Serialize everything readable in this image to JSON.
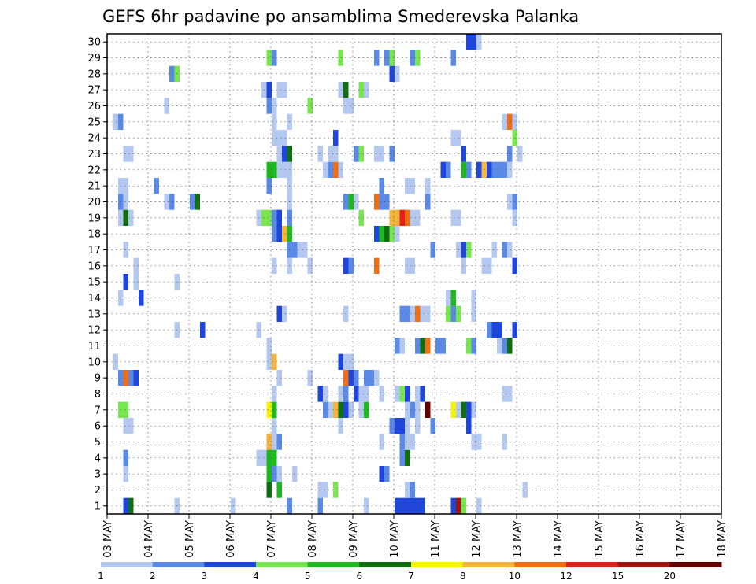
{
  "chart_data": {
    "type": "heatmap",
    "title": "GEFS 6hr padavine po ansamblima Smederevska Palanka",
    "xlabel": "",
    "ylabel": "",
    "x_tick_labels": [
      "03 MAY",
      "04 MAY",
      "05 MAY",
      "06 MAY",
      "07 MAY",
      "08 MAY",
      "09 MAY",
      "10 MAY",
      "11 MAY",
      "12 MAY",
      "13 MAY",
      "14 MAY",
      "15 MAY",
      "16 MAY",
      "17 MAY",
      "18 MAY"
    ],
    "y_tick_labels": [
      "1",
      "2",
      "3",
      "4",
      "5",
      "6",
      "7",
      "8",
      "9",
      "10",
      "11",
      "12",
      "13",
      "14",
      "15",
      "16",
      "17",
      "18",
      "19",
      "20",
      "21",
      "22",
      "23",
      "24",
      "25",
      "26",
      "27",
      "28",
      "29",
      "30"
    ],
    "x_unit": "6-hour step",
    "y_range": [
      0.5,
      30.5
    ],
    "grid": true,
    "colorbar": {
      "labels": [
        "1",
        "2",
        "3",
        "4",
        "5",
        "6",
        "7",
        "8",
        "10",
        "12",
        "15",
        "20"
      ],
      "colors": [
        "#b4c8f0",
        "#5a8ae6",
        "#1e46dc",
        "#78e650",
        "#1eb91e",
        "#0f6e0f",
        "#f5f500",
        "#f5b43c",
        "#f06e14",
        "#e61e1e",
        "#a0140f",
        "#640000"
      ]
    },
    "cells": [
      [
        4,
        1,
        3
      ],
      [
        5,
        1,
        6
      ],
      [
        14,
        1,
        1
      ],
      [
        25,
        1,
        1
      ],
      [
        36,
        1,
        2
      ],
      [
        42,
        1,
        2
      ],
      [
        51,
        1,
        1
      ],
      [
        57,
        1,
        3
      ],
      [
        58,
        1,
        3
      ],
      [
        59,
        1,
        3
      ],
      [
        60,
        1,
        3
      ],
      [
        61,
        1,
        3
      ],
      [
        62,
        1,
        3
      ],
      [
        68,
        1,
        3
      ],
      [
        69,
        1,
        11
      ],
      [
        70,
        1,
        4
      ],
      [
        73,
        1,
        1
      ],
      [
        32,
        2,
        6
      ],
      [
        34,
        2,
        5
      ],
      [
        42,
        2,
        1
      ],
      [
        43,
        2,
        1
      ],
      [
        45,
        2,
        4
      ],
      [
        59,
        2,
        1
      ],
      [
        60,
        2,
        2
      ],
      [
        82,
        2,
        1
      ],
      [
        4,
        3,
        1
      ],
      [
        32,
        3,
        5
      ],
      [
        33,
        3,
        2
      ],
      [
        34,
        3,
        1
      ],
      [
        37,
        3,
        1
      ],
      [
        54,
        3,
        3
      ],
      [
        55,
        3,
        2
      ],
      [
        4,
        4,
        2
      ],
      [
        30,
        4,
        1
      ],
      [
        31,
        4,
        1
      ],
      [
        32,
        4,
        5
      ],
      [
        33,
        4,
        5
      ],
      [
        58,
        4,
        2
      ],
      [
        59,
        4,
        6
      ],
      [
        32,
        5,
        8
      ],
      [
        33,
        5,
        1
      ],
      [
        34,
        5,
        2
      ],
      [
        54,
        5,
        1
      ],
      [
        58,
        5,
        2
      ],
      [
        59,
        5,
        1
      ],
      [
        60,
        5,
        1
      ],
      [
        72,
        5,
        1
      ],
      [
        73,
        5,
        1
      ],
      [
        78,
        5,
        1
      ],
      [
        4,
        6,
        1
      ],
      [
        5,
        6,
        1
      ],
      [
        33,
        6,
        1
      ],
      [
        46,
        6,
        1
      ],
      [
        56,
        6,
        2
      ],
      [
        57,
        6,
        3
      ],
      [
        58,
        6,
        3
      ],
      [
        59,
        6,
        1
      ],
      [
        61,
        6,
        1
      ],
      [
        64,
        6,
        2
      ],
      [
        71,
        6,
        3
      ],
      [
        3,
        7,
        4
      ],
      [
        4,
        7,
        4
      ],
      [
        32,
        7,
        7
      ],
      [
        33,
        7,
        5
      ],
      [
        43,
        7,
        2
      ],
      [
        44,
        7,
        1
      ],
      [
        45,
        7,
        8
      ],
      [
        46,
        7,
        6
      ],
      [
        47,
        7,
        3
      ],
      [
        48,
        7,
        1
      ],
      [
        50,
        7,
        1
      ],
      [
        51,
        7,
        5
      ],
      [
        59,
        7,
        1
      ],
      [
        60,
        7,
        2
      ],
      [
        61,
        7,
        1
      ],
      [
        63,
        7,
        12
      ],
      [
        68,
        7,
        7
      ],
      [
        69,
        7,
        1
      ],
      [
        70,
        7,
        6
      ],
      [
        71,
        7,
        3
      ],
      [
        72,
        7,
        1
      ],
      [
        33,
        8,
        1
      ],
      [
        42,
        8,
        3
      ],
      [
        43,
        8,
        1
      ],
      [
        46,
        8,
        1
      ],
      [
        47,
        8,
        2
      ],
      [
        49,
        8,
        3
      ],
      [
        50,
        8,
        1
      ],
      [
        51,
        8,
        1
      ],
      [
        54,
        8,
        1
      ],
      [
        57,
        8,
        1
      ],
      [
        58,
        8,
        4
      ],
      [
        59,
        8,
        3
      ],
      [
        61,
        8,
        1
      ],
      [
        62,
        8,
        3
      ],
      [
        78,
        8,
        1
      ],
      [
        79,
        8,
        1
      ],
      [
        3,
        9,
        2
      ],
      [
        4,
        9,
        9
      ],
      [
        5,
        9,
        2
      ],
      [
        6,
        9,
        3
      ],
      [
        34,
        9,
        1
      ],
      [
        40,
        9,
        1
      ],
      [
        47,
        9,
        9
      ],
      [
        48,
        9,
        3
      ],
      [
        49,
        9,
        2
      ],
      [
        51,
        9,
        2
      ],
      [
        52,
        9,
        2
      ],
      [
        53,
        9,
        1
      ],
      [
        2,
        10,
        1
      ],
      [
        32,
        10,
        1
      ],
      [
        33,
        10,
        8
      ],
      [
        46,
        10,
        3
      ],
      [
        47,
        10,
        1
      ],
      [
        48,
        10,
        1
      ],
      [
        32,
        11,
        1
      ],
      [
        57,
        11,
        2
      ],
      [
        58,
        11,
        1
      ],
      [
        61,
        11,
        2
      ],
      [
        62,
        11,
        6
      ],
      [
        63,
        11,
        9
      ],
      [
        65,
        11,
        2
      ],
      [
        66,
        11,
        2
      ],
      [
        71,
        11,
        4
      ],
      [
        72,
        11,
        2
      ],
      [
        77,
        11,
        1
      ],
      [
        78,
        11,
        2
      ],
      [
        79,
        11,
        6
      ],
      [
        14,
        12,
        1
      ],
      [
        19,
        12,
        3
      ],
      [
        30,
        12,
        1
      ],
      [
        75,
        12,
        2
      ],
      [
        76,
        12,
        3
      ],
      [
        77,
        12,
        3
      ],
      [
        80,
        12,
        3
      ],
      [
        34,
        13,
        3
      ],
      [
        35,
        13,
        1
      ],
      [
        47,
        13,
        1
      ],
      [
        58,
        13,
        2
      ],
      [
        59,
        13,
        2
      ],
      [
        60,
        13,
        1
      ],
      [
        61,
        13,
        9
      ],
      [
        62,
        13,
        1
      ],
      [
        63,
        13,
        1
      ],
      [
        67,
        13,
        4
      ],
      [
        68,
        13,
        2
      ],
      [
        69,
        13,
        4
      ],
      [
        72,
        13,
        1
      ],
      [
        3,
        14,
        1
      ],
      [
        7,
        14,
        3
      ],
      [
        67,
        14,
        1
      ],
      [
        68,
        14,
        5
      ],
      [
        72,
        14,
        1
      ],
      [
        4,
        15,
        3
      ],
      [
        6,
        15,
        1
      ],
      [
        14,
        15,
        1
      ],
      [
        6,
        16,
        1
      ],
      [
        33,
        16,
        1
      ],
      [
        36,
        16,
        1
      ],
      [
        40,
        16,
        1
      ],
      [
        47,
        16,
        3
      ],
      [
        48,
        16,
        2
      ],
      [
        53,
        16,
        9
      ],
      [
        59,
        16,
        1
      ],
      [
        60,
        16,
        1
      ],
      [
        70,
        16,
        1
      ],
      [
        74,
        16,
        1
      ],
      [
        75,
        16,
        1
      ],
      [
        80,
        16,
        3
      ],
      [
        4,
        17,
        1
      ],
      [
        36,
        17,
        2
      ],
      [
        37,
        17,
        2
      ],
      [
        38,
        17,
        1
      ],
      [
        39,
        17,
        1
      ],
      [
        64,
        17,
        2
      ],
      [
        69,
        17,
        1
      ],
      [
        70,
        17,
        3
      ],
      [
        71,
        17,
        4
      ],
      [
        76,
        17,
        1
      ],
      [
        78,
        17,
        2
      ],
      [
        79,
        17,
        1
      ],
      [
        33,
        18,
        2
      ],
      [
        34,
        18,
        3
      ],
      [
        35,
        18,
        8
      ],
      [
        36,
        18,
        5
      ],
      [
        53,
        18,
        3
      ],
      [
        54,
        18,
        5
      ],
      [
        55,
        18,
        6
      ],
      [
        56,
        18,
        4
      ],
      [
        57,
        18,
        1
      ],
      [
        3,
        19,
        1
      ],
      [
        4,
        19,
        6
      ],
      [
        5,
        19,
        1
      ],
      [
        30,
        19,
        1
      ],
      [
        31,
        19,
        4
      ],
      [
        32,
        19,
        4
      ],
      [
        33,
        19,
        2
      ],
      [
        34,
        19,
        3
      ],
      [
        36,
        19,
        2
      ],
      [
        50,
        19,
        4
      ],
      [
        56,
        19,
        8
      ],
      [
        57,
        19,
        8
      ],
      [
        58,
        19,
        10
      ],
      [
        59,
        19,
        9
      ],
      [
        60,
        19,
        1
      ],
      [
        61,
        19,
        1
      ],
      [
        68,
        19,
        1
      ],
      [
        69,
        19,
        1
      ],
      [
        80,
        19,
        1
      ],
      [
        3,
        20,
        2
      ],
      [
        4,
        20,
        1
      ],
      [
        12,
        20,
        1
      ],
      [
        13,
        20,
        2
      ],
      [
        17,
        20,
        2
      ],
      [
        18,
        20,
        6
      ],
      [
        36,
        20,
        1
      ],
      [
        47,
        20,
        2
      ],
      [
        48,
        20,
        5
      ],
      [
        49,
        20,
        1
      ],
      [
        53,
        20,
        9
      ],
      [
        54,
        20,
        2
      ],
      [
        55,
        20,
        2
      ],
      [
        63,
        20,
        2
      ],
      [
        79,
        20,
        1
      ],
      [
        80,
        20,
        2
      ],
      [
        3,
        21,
        1
      ],
      [
        4,
        21,
        1
      ],
      [
        10,
        21,
        2
      ],
      [
        32,
        21,
        2
      ],
      [
        36,
        21,
        1
      ],
      [
        54,
        21,
        2
      ],
      [
        59,
        21,
        1
      ],
      [
        60,
        21,
        1
      ],
      [
        63,
        21,
        1
      ],
      [
        32,
        22,
        5
      ],
      [
        33,
        22,
        5
      ],
      [
        34,
        22,
        1
      ],
      [
        35,
        22,
        1
      ],
      [
        36,
        22,
        1
      ],
      [
        43,
        22,
        1
      ],
      [
        44,
        22,
        2
      ],
      [
        45,
        22,
        9
      ],
      [
        46,
        22,
        1
      ],
      [
        66,
        22,
        3
      ],
      [
        67,
        22,
        2
      ],
      [
        70,
        22,
        5
      ],
      [
        71,
        22,
        2
      ],
      [
        73,
        22,
        3
      ],
      [
        74,
        22,
        8
      ],
      [
        75,
        22,
        3
      ],
      [
        76,
        22,
        2
      ],
      [
        77,
        22,
        2
      ],
      [
        78,
        22,
        2
      ],
      [
        79,
        22,
        1
      ],
      [
        4,
        23,
        1
      ],
      [
        5,
        23,
        1
      ],
      [
        34,
        23,
        1
      ],
      [
        35,
        23,
        3
      ],
      [
        36,
        23,
        6
      ],
      [
        42,
        23,
        1
      ],
      [
        44,
        23,
        1
      ],
      [
        45,
        23,
        1
      ],
      [
        49,
        23,
        2
      ],
      [
        50,
        23,
        4
      ],
      [
        53,
        23,
        1
      ],
      [
        54,
        23,
        1
      ],
      [
        56,
        23,
        2
      ],
      [
        70,
        23,
        3
      ],
      [
        79,
        23,
        2
      ],
      [
        81,
        23,
        1
      ],
      [
        33,
        24,
        1
      ],
      [
        34,
        24,
        1
      ],
      [
        35,
        24,
        1
      ],
      [
        45,
        24,
        3
      ],
      [
        68,
        24,
        1
      ],
      [
        69,
        24,
        1
      ],
      [
        80,
        24,
        4
      ],
      [
        2,
        25,
        1
      ],
      [
        3,
        25,
        2
      ],
      [
        33,
        25,
        1
      ],
      [
        36,
        25,
        1
      ],
      [
        78,
        25,
        1
      ],
      [
        79,
        25,
        9
      ],
      [
        80,
        25,
        1
      ],
      [
        12,
        26,
        1
      ],
      [
        32,
        26,
        2
      ],
      [
        33,
        26,
        1
      ],
      [
        40,
        26,
        4
      ],
      [
        47,
        26,
        1
      ],
      [
        48,
        26,
        1
      ],
      [
        31,
        27,
        1
      ],
      [
        32,
        27,
        3
      ],
      [
        34,
        27,
        1
      ],
      [
        35,
        27,
        1
      ],
      [
        46,
        27,
        1
      ],
      [
        47,
        27,
        6
      ],
      [
        50,
        27,
        4
      ],
      [
        51,
        27,
        1
      ],
      [
        13,
        28,
        2
      ],
      [
        14,
        28,
        4
      ],
      [
        56,
        28,
        3
      ],
      [
        57,
        28,
        1
      ],
      [
        32,
        29,
        4
      ],
      [
        33,
        29,
        2
      ],
      [
        46,
        29,
        4
      ],
      [
        53,
        29,
        2
      ],
      [
        55,
        29,
        2
      ],
      [
        56,
        29,
        4
      ],
      [
        60,
        29,
        2
      ],
      [
        61,
        29,
        4
      ],
      [
        68,
        29,
        2
      ],
      [
        71,
        30,
        3
      ],
      [
        72,
        30,
        3
      ],
      [
        73,
        30,
        1
      ]
    ]
  }
}
